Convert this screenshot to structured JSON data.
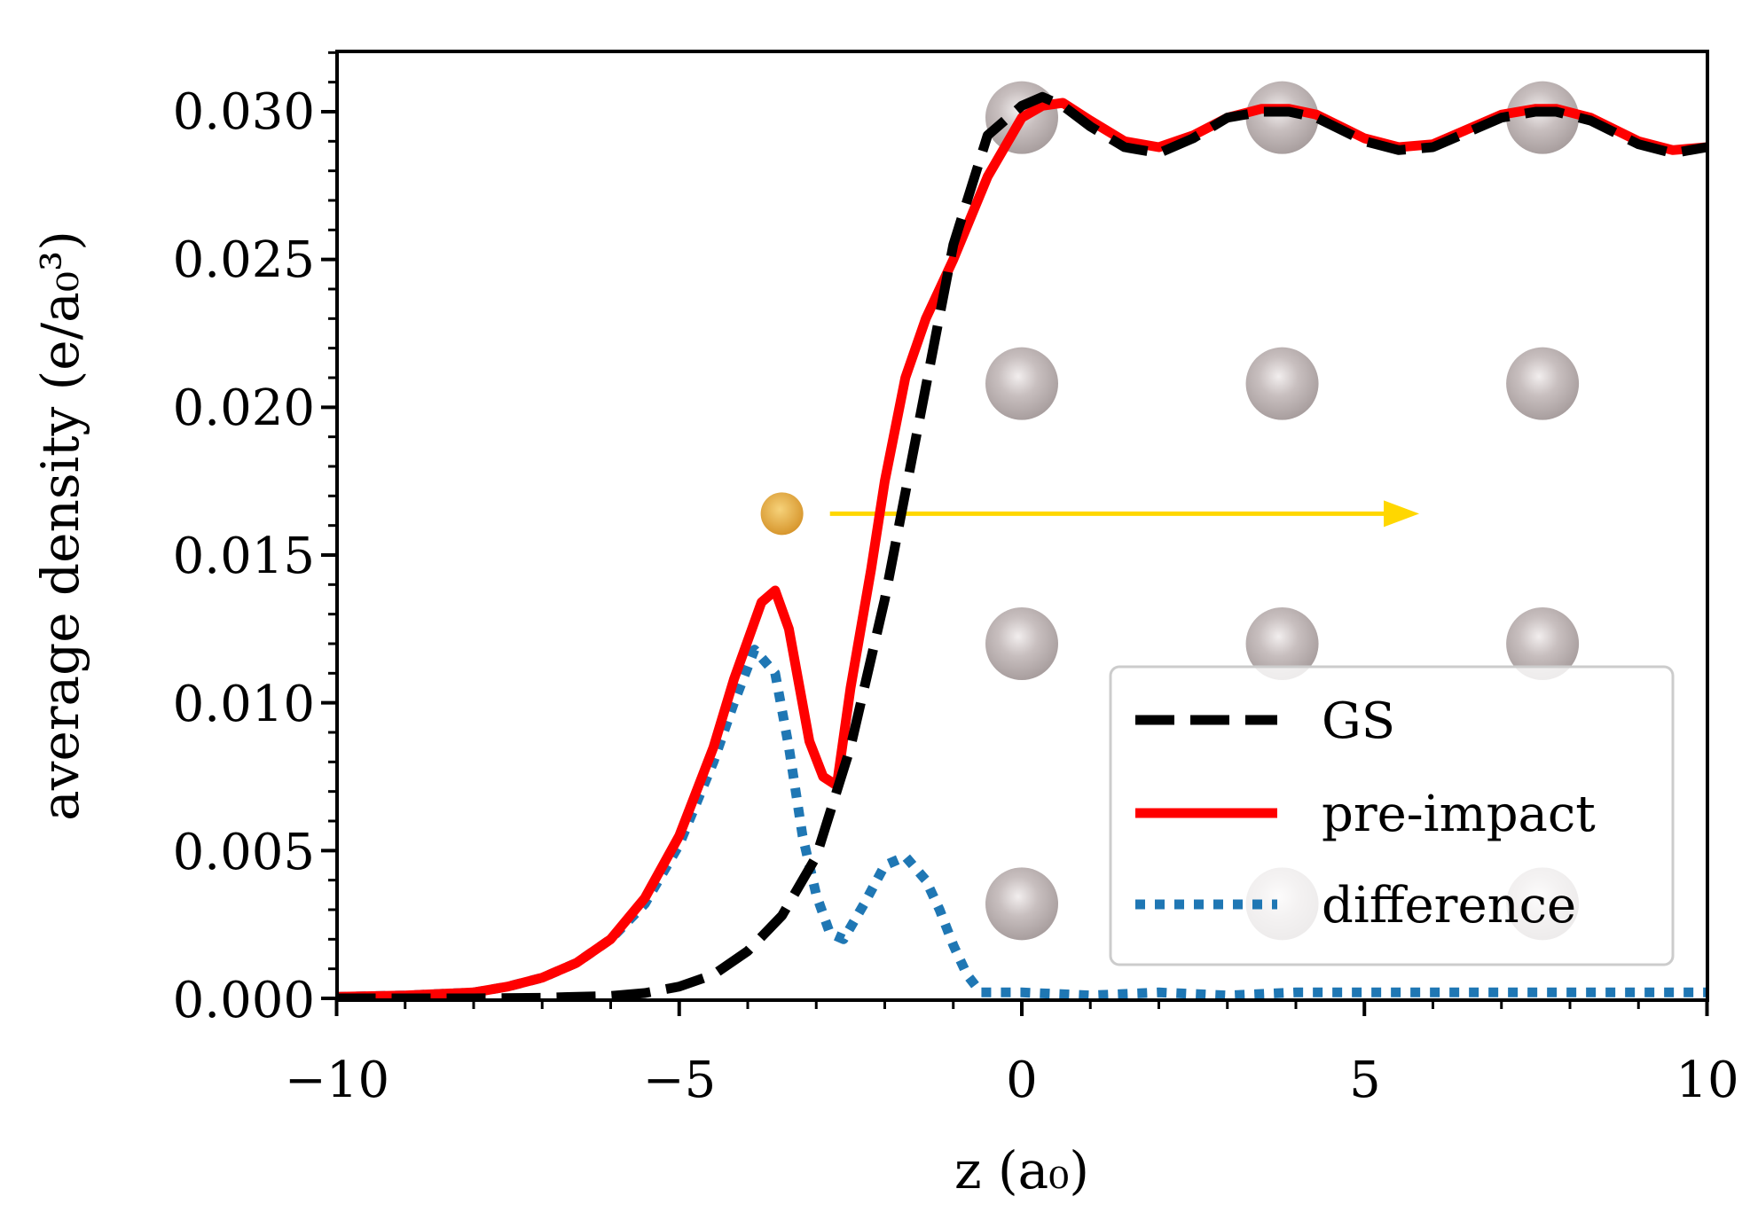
{
  "chart_data": {
    "type": "line",
    "title": "",
    "xlabel": "z (a₀)",
    "ylabel": "average density (e/a₀³)",
    "xlim": [
      -10,
      10
    ],
    "ylim": [
      0.0,
      0.032
    ],
    "grid": false,
    "legend_position": "bottom-right",
    "x_ticks": [
      "−10",
      "−5",
      "0",
      "5",
      "10"
    ],
    "y_ticks": [
      "0.000",
      "0.005",
      "0.010",
      "0.015",
      "0.020",
      "0.025",
      "0.030"
    ],
    "series": [
      {
        "name": "GS",
        "style": "dashed",
        "color": "#000000",
        "x": [
          -10,
          -9,
          -8,
          -7,
          -6,
          -5.5,
          -5,
          -4.5,
          -4,
          -3.5,
          -3,
          -2.5,
          -2,
          -1.5,
          -1,
          -0.5,
          0,
          0.3,
          0.6,
          1,
          1.5,
          2,
          2.5,
          3,
          3.5,
          3.9,
          4.3,
          5,
          5.5,
          6,
          6.5,
          7,
          7.5,
          7.8,
          8.3,
          9,
          9.5,
          10
        ],
        "values": [
          0,
          0,
          0,
          2e-05,
          8e-05,
          0.00018,
          0.0004,
          0.0008,
          0.0016,
          0.0028,
          0.0048,
          0.0085,
          0.0135,
          0.0195,
          0.0255,
          0.0292,
          0.0302,
          0.0305,
          0.0302,
          0.0295,
          0.0288,
          0.0286,
          0.0291,
          0.0298,
          0.03,
          0.03,
          0.0298,
          0.029,
          0.0287,
          0.0288,
          0.0293,
          0.0298,
          0.03,
          0.03,
          0.0297,
          0.0289,
          0.0286,
          0.0288
        ]
      },
      {
        "name": "pre-impact",
        "style": "solid",
        "color": "#ff0000",
        "x": [
          -10,
          -9,
          -8,
          -7.5,
          -7,
          -6.5,
          -6,
          -5.5,
          -5,
          -4.5,
          -4.2,
          -3.8,
          -3.6,
          -3.4,
          -3.1,
          -2.9,
          -2.7,
          -2.5,
          -2.2,
          -2,
          -1.7,
          -1.4,
          -1,
          -0.5,
          0,
          0.3,
          0.6,
          1,
          1.5,
          2,
          2.5,
          3,
          3.5,
          3.9,
          4.3,
          5,
          5.5,
          6,
          6.5,
          7,
          7.5,
          7.8,
          8.3,
          9,
          9.5,
          10
        ],
        "values": [
          5e-05,
          0.0001,
          0.0002,
          0.0004,
          0.0007,
          0.0012,
          0.002,
          0.0034,
          0.0055,
          0.0085,
          0.0108,
          0.0134,
          0.0138,
          0.0125,
          0.0087,
          0.0075,
          0.0072,
          0.0105,
          0.0145,
          0.0175,
          0.021,
          0.023,
          0.025,
          0.0278,
          0.0298,
          0.0302,
          0.0303,
          0.0297,
          0.029,
          0.0288,
          0.0292,
          0.0298,
          0.0301,
          0.0301,
          0.0299,
          0.0291,
          0.0288,
          0.0289,
          0.0294,
          0.0299,
          0.0301,
          0.0301,
          0.0298,
          0.029,
          0.0287,
          0.0288
        ]
      },
      {
        "name": "difference",
        "style": "dotted",
        "color": "#1f77b4",
        "x": [
          -10,
          -9,
          -8,
          -7.5,
          -7,
          -6.5,
          -6,
          -5.5,
          -5,
          -4.5,
          -4.2,
          -3.9,
          -3.6,
          -3.4,
          -3.2,
          -3.0,
          -2.8,
          -2.6,
          -2.3,
          -2.0,
          -1.7,
          -1.4,
          -1.2,
          -1.0,
          -0.8,
          -0.6,
          -0.3,
          0,
          1,
          2,
          3,
          4,
          5,
          6,
          7,
          8,
          9,
          10
        ],
        "values": [
          5e-05,
          0.0001,
          0.0002,
          0.0004,
          0.0007,
          0.0012,
          0.002,
          0.0032,
          0.0052,
          0.008,
          0.01,
          0.0118,
          0.011,
          0.0085,
          0.0055,
          0.0035,
          0.0022,
          0.002,
          0.0032,
          0.0045,
          0.0048,
          0.004,
          0.003,
          0.0018,
          0.0008,
          0.0002,
          0.0002,
          0.0002,
          0.0001,
          0.0002,
          0.0001,
          0.0002,
          0.0002,
          0.0002,
          0.0002,
          0.0002,
          0.0002,
          0.0002
        ]
      }
    ],
    "atoms": [
      {
        "x": 0.0,
        "y": 0.0298
      },
      {
        "x": 3.8,
        "y": 0.0298
      },
      {
        "x": 7.6,
        "y": 0.0298
      },
      {
        "x": 0.0,
        "y": 0.0208
      },
      {
        "x": 3.8,
        "y": 0.0208
      },
      {
        "x": 7.6,
        "y": 0.0208
      },
      {
        "x": 0.0,
        "y": 0.012
      },
      {
        "x": 3.8,
        "y": 0.012
      },
      {
        "x": 7.6,
        "y": 0.012
      },
      {
        "x": 0.0,
        "y": 0.0032
      },
      {
        "x": 3.8,
        "y": 0.0032
      },
      {
        "x": 7.6,
        "y": 0.0032
      }
    ],
    "projectile": {
      "x": -3.5,
      "y": 0.0164
    },
    "arrow": {
      "x_start": -2.8,
      "x_end": 5.8,
      "y": 0.0164
    },
    "colors": {
      "atom": "#bcb3b3",
      "projectile": "#e8a93c",
      "arrow": "#ffd700",
      "legend_border": "#cccccc"
    }
  }
}
